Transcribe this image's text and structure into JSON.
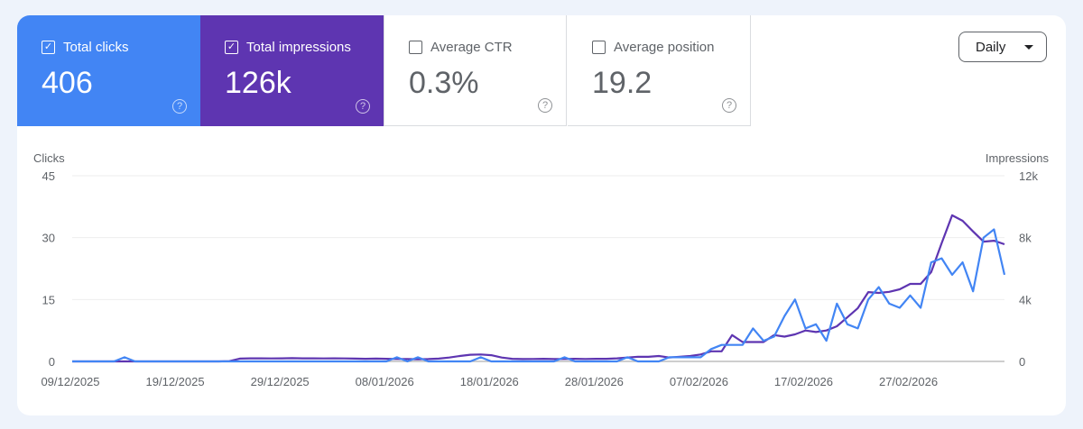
{
  "tiles": [
    {
      "label": "Total clicks",
      "value": "406",
      "checked": true,
      "color": "#4285f4"
    },
    {
      "label": "Total impressions",
      "value": "126k",
      "checked": true,
      "color": "#5e35b1"
    },
    {
      "label": "Average CTR",
      "value": "0.3%",
      "checked": false
    },
    {
      "label": "Average position",
      "value": "19.2",
      "checked": false
    }
  ],
  "granularity": "Daily",
  "chart_data": {
    "type": "line",
    "ylabel": "Clicks",
    "ylabel_right": "Impressions",
    "ylim": [
      0,
      45
    ],
    "ylim_right": [
      0,
      12000
    ],
    "y_ticks": [
      "0",
      "15",
      "30",
      "45"
    ],
    "y_ticks_right": [
      "0",
      "4k",
      "8k",
      "12k"
    ],
    "x_ticks": [
      "09/12/2025",
      "19/12/2025",
      "29/12/2025",
      "08/01/2026",
      "18/01/2026",
      "28/01/2026",
      "07/02/2026",
      "17/02/2026",
      "27/02/2026"
    ],
    "grid": true,
    "x": [
      "2025-12-09",
      "2025-12-10",
      "2025-12-11",
      "2025-12-12",
      "2025-12-13",
      "2025-12-14",
      "2025-12-15",
      "2025-12-16",
      "2025-12-17",
      "2025-12-18",
      "2025-12-19",
      "2025-12-20",
      "2025-12-21",
      "2025-12-22",
      "2025-12-23",
      "2025-12-24",
      "2025-12-25",
      "2025-12-26",
      "2025-12-27",
      "2025-12-28",
      "2025-12-29",
      "2025-12-30",
      "2025-12-31",
      "2026-01-01",
      "2026-01-02",
      "2026-01-03",
      "2026-01-04",
      "2026-01-05",
      "2026-01-06",
      "2026-01-07",
      "2026-01-08",
      "2026-01-09",
      "2026-01-10",
      "2026-01-11",
      "2026-01-12",
      "2026-01-13",
      "2026-01-14",
      "2026-01-15",
      "2026-01-16",
      "2026-01-17",
      "2026-01-18",
      "2026-01-19",
      "2026-01-20",
      "2026-01-21",
      "2026-01-22",
      "2026-01-23",
      "2026-01-24",
      "2026-01-25",
      "2026-01-26",
      "2026-01-27",
      "2026-01-28",
      "2026-01-29",
      "2026-01-30",
      "2026-01-31",
      "2026-02-01",
      "2026-02-02",
      "2026-02-03",
      "2026-02-04",
      "2026-02-05",
      "2026-02-06",
      "2026-02-07",
      "2026-02-08",
      "2026-02-09",
      "2026-02-10",
      "2026-02-11",
      "2026-02-12",
      "2026-02-13",
      "2026-02-14",
      "2026-02-15",
      "2026-02-16",
      "2026-02-17",
      "2026-02-18",
      "2026-02-19",
      "2026-02-20",
      "2026-02-21",
      "2026-02-22",
      "2026-02-23",
      "2026-02-24",
      "2026-02-25",
      "2026-02-26",
      "2026-02-27",
      "2026-02-28",
      "2026-03-01",
      "2026-03-02",
      "2026-03-03",
      "2026-03-04",
      "2026-03-05",
      "2026-03-06",
      "2026-03-07",
      "2026-03-08"
    ],
    "series": [
      {
        "name": "Clicks",
        "axis": "left",
        "color": "#4285f4",
        "values": [
          0,
          0,
          0,
          0,
          0,
          1,
          0,
          0,
          0,
          0,
          0,
          0,
          0,
          0,
          0,
          0,
          0,
          0,
          0,
          0,
          0,
          0,
          0,
          0,
          0,
          0,
          0,
          0,
          0,
          0,
          0,
          1,
          0,
          1,
          0,
          0,
          0,
          0,
          0,
          1,
          0,
          0,
          0,
          0,
          0,
          0,
          0,
          1,
          0,
          0,
          0,
          0,
          0,
          1,
          0,
          0,
          0,
          1,
          1,
          1,
          1,
          3,
          4,
          4,
          4,
          8,
          5,
          6,
          11,
          15,
          8,
          9,
          5,
          14,
          9,
          8,
          15,
          18,
          14,
          13,
          16,
          13,
          24,
          25,
          21,
          24,
          17,
          30,
          32,
          21
        ]
      },
      {
        "name": "Impressions",
        "axis": "right",
        "color": "#5e35b1",
        "values": [
          0,
          0,
          0,
          0,
          0,
          0,
          0,
          0,
          0,
          0,
          0,
          0,
          0,
          0,
          0,
          20,
          180,
          200,
          200,
          190,
          200,
          210,
          200,
          200,
          190,
          200,
          190,
          180,
          170,
          180,
          170,
          160,
          150,
          140,
          150,
          180,
          250,
          350,
          430,
          450,
          400,
          250,
          170,
          150,
          160,
          170,
          150,
          160,
          170,
          160,
          170,
          170,
          200,
          250,
          300,
          300,
          350,
          250,
          300,
          350,
          450,
          650,
          650,
          1700,
          1250,
          1250,
          1250,
          1700,
          1600,
          1750,
          2000,
          1900,
          2000,
          2270,
          2850,
          3440,
          4480,
          4430,
          4500,
          4660,
          5010,
          5010,
          5770,
          7640,
          9440,
          9090,
          8400,
          7740,
          7800,
          7570
        ]
      }
    ]
  }
}
